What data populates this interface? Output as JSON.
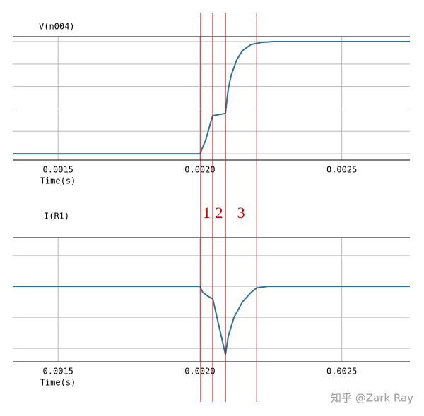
{
  "chart_data": [
    {
      "type": "line",
      "title": "V(n004)",
      "xlabel": "Time(s)",
      "xlim": [
        0.00134,
        0.00274
      ],
      "xticks": [
        0.0015,
        {
          "value": 0.002,
          "label": "0.0020"
        },
        0.0025
      ],
      "ylim": [
        -0.28,
        5.22
      ],
      "ygrid": [
        0,
        1,
        2,
        3,
        4,
        5
      ],
      "grid": true,
      "series": [
        {
          "color": "#2f7494",
          "x": [
            0.00134,
            0.002,
            0.00202,
            0.00204,
            0.002045,
            0.00209,
            0.002095,
            0.0021,
            0.00211,
            0.00213,
            0.00215,
            0.00218,
            0.00222,
            0.00226,
            0.00274
          ],
          "values": [
            0,
            0,
            0.6,
            1.5,
            1.7,
            1.8,
            2.4,
            2.9,
            3.5,
            4.2,
            4.6,
            4.87,
            4.97,
            5,
            5
          ]
        }
      ]
    },
    {
      "type": "line",
      "title": "I(R1)",
      "xlabel": "Time(s)",
      "xlim": [
        0.00134,
        0.00274
      ],
      "xticks": [
        0.0015,
        {
          "value": 0.002,
          "label": "0.0020"
        },
        0.0025
      ],
      "ylim": [
        -2.43,
        1.57
      ],
      "ygrid": [
        -2,
        -1,
        0,
        1
      ],
      "grid": true,
      "series": [
        {
          "color": "#2f7494",
          "x": [
            0.00134,
            0.002,
            0.00201,
            0.00203,
            0.002045,
            0.00209,
            0.0021,
            0.00212,
            0.00215,
            0.00218,
            0.0022,
            0.00224,
            0.00274
          ],
          "values": [
            0,
            0,
            -0.2,
            -0.33,
            -0.4,
            -2.2,
            -1.6,
            -1.0,
            -0.5,
            -0.2,
            -0.05,
            0,
            0
          ]
        }
      ]
    }
  ],
  "markers": {
    "color": "#cc0000",
    "times": [
      0.0020025,
      0.002045,
      0.00209,
      0.0022
    ],
    "labels": [
      "1",
      "2",
      "3"
    ]
  },
  "watermark": "知乎 @Zark Ray"
}
